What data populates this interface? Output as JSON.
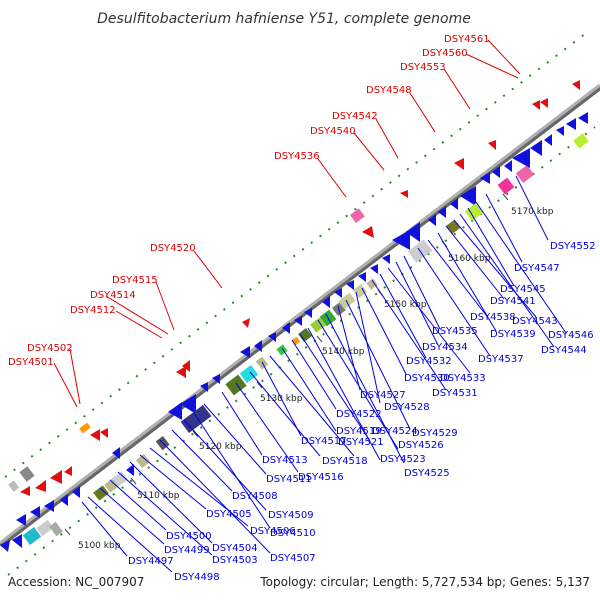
{
  "title": "Desulfitobacterium hafniense Y51, complete genome",
  "footer": {
    "accession": "Accession: NC_007907",
    "summary": "Topology: circular; Length: 5,727,534 bp; Genes: 5,137"
  },
  "colors": {
    "forward_label": "#dd0000",
    "reverse_label": "#0000dd",
    "backbone": "#999999",
    "forward_tick": "#006600"
  },
  "kbp_labels": [
    "5100 kbp",
    "5110 kbp",
    "5120 kbp",
    "5130 kbp",
    "5140 kbp",
    "5150 kbp",
    "5160 kbp",
    "5170 kbp"
  ],
  "forward_genes": [
    "DSY4501",
    "DSY4502",
    "DSY4512",
    "DSY4514",
    "DSY4515",
    "DSY4520",
    "DSY4536",
    "DSY4540",
    "DSY4542",
    "DSY4548",
    "DSY4553",
    "DSY4560",
    "DSY4561"
  ],
  "reverse_genes": [
    "DSY4497",
    "DSY4498",
    "DSY4499",
    "DSY4500",
    "DSY4503",
    "DSY4504",
    "DSY4505",
    "DSY4506",
    "DSY4507",
    "DSY4508",
    "DSY4509",
    "DSY4510",
    "DSY4511",
    "DSY4513",
    "DSY4516",
    "DSY4517",
    "DSY4518",
    "DSY4519",
    "DSY4521",
    "DSY4522",
    "DSY4523",
    "DSY4524",
    "DSY4525",
    "DSY4526",
    "DSY4527",
    "DSY4528",
    "DSY4529",
    "DSY4530",
    "DSY4531",
    "DSY4532",
    "DSY4533",
    "DSY4534",
    "DSY4535",
    "DSY4537",
    "DSY4538",
    "DSY4539",
    "DSY4541",
    "DSY4543",
    "DSY4544",
    "DSY4545",
    "DSY4546",
    "DSY4547",
    "DSY4552"
  ]
}
